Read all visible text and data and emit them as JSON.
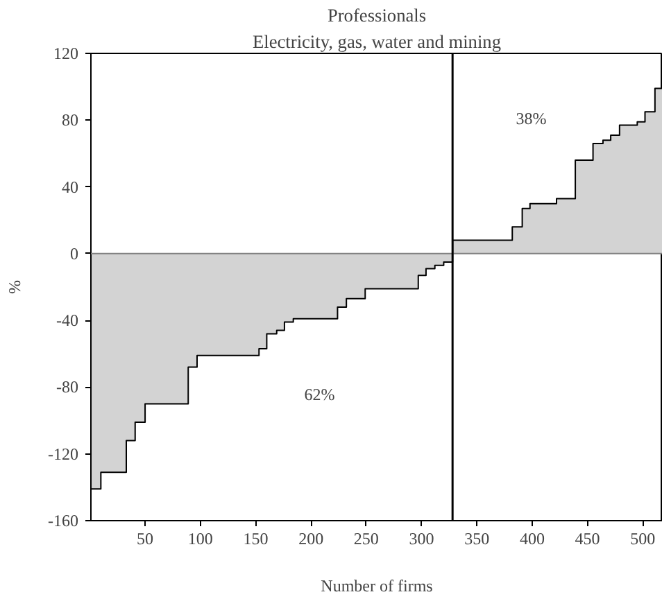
{
  "chart_data": {
    "type": "step",
    "title": "Professionals",
    "subtitle": "Electricity, gas, water and mining",
    "xlabel": "Number of firms",
    "ylabel": "%",
    "x": [
      1,
      10,
      33,
      41,
      50,
      89,
      97,
      153,
      160,
      169,
      176,
      184,
      224,
      232,
      249,
      297,
      304,
      312,
      320,
      328,
      382,
      391,
      398,
      422,
      439,
      455,
      464,
      471,
      479,
      495,
      502,
      511,
      518
    ],
    "series": [
      {
        "color": "#000000",
        "values": [
          -141,
          -131,
          -112,
          -101,
          -90,
          -68,
          -61,
          -57,
          -48,
          -46,
          -41,
          -39,
          -32,
          -27,
          -21,
          -13,
          -9,
          -7,
          -5,
          8,
          16,
          27,
          30,
          33,
          56,
          66,
          68,
          71,
          77,
          79,
          85,
          99,
          99
        ]
      }
    ],
    "xlim": [
      1,
      518
    ],
    "ylim": [
      -160,
      120
    ],
    "xticks": [
      50,
      100,
      150,
      200,
      250,
      300,
      350,
      400,
      450,
      500
    ],
    "yticks": [
      -160,
      -120,
      -80,
      -40,
      0,
      40,
      80,
      120
    ],
    "ref_lines": [
      {
        "axis": "y",
        "value": 0,
        "color": "#808080"
      },
      {
        "axis": "x",
        "value": 328,
        "color": "#000000"
      }
    ],
    "annotations": [
      "62%",
      "38%"
    ],
    "grid": false
  }
}
